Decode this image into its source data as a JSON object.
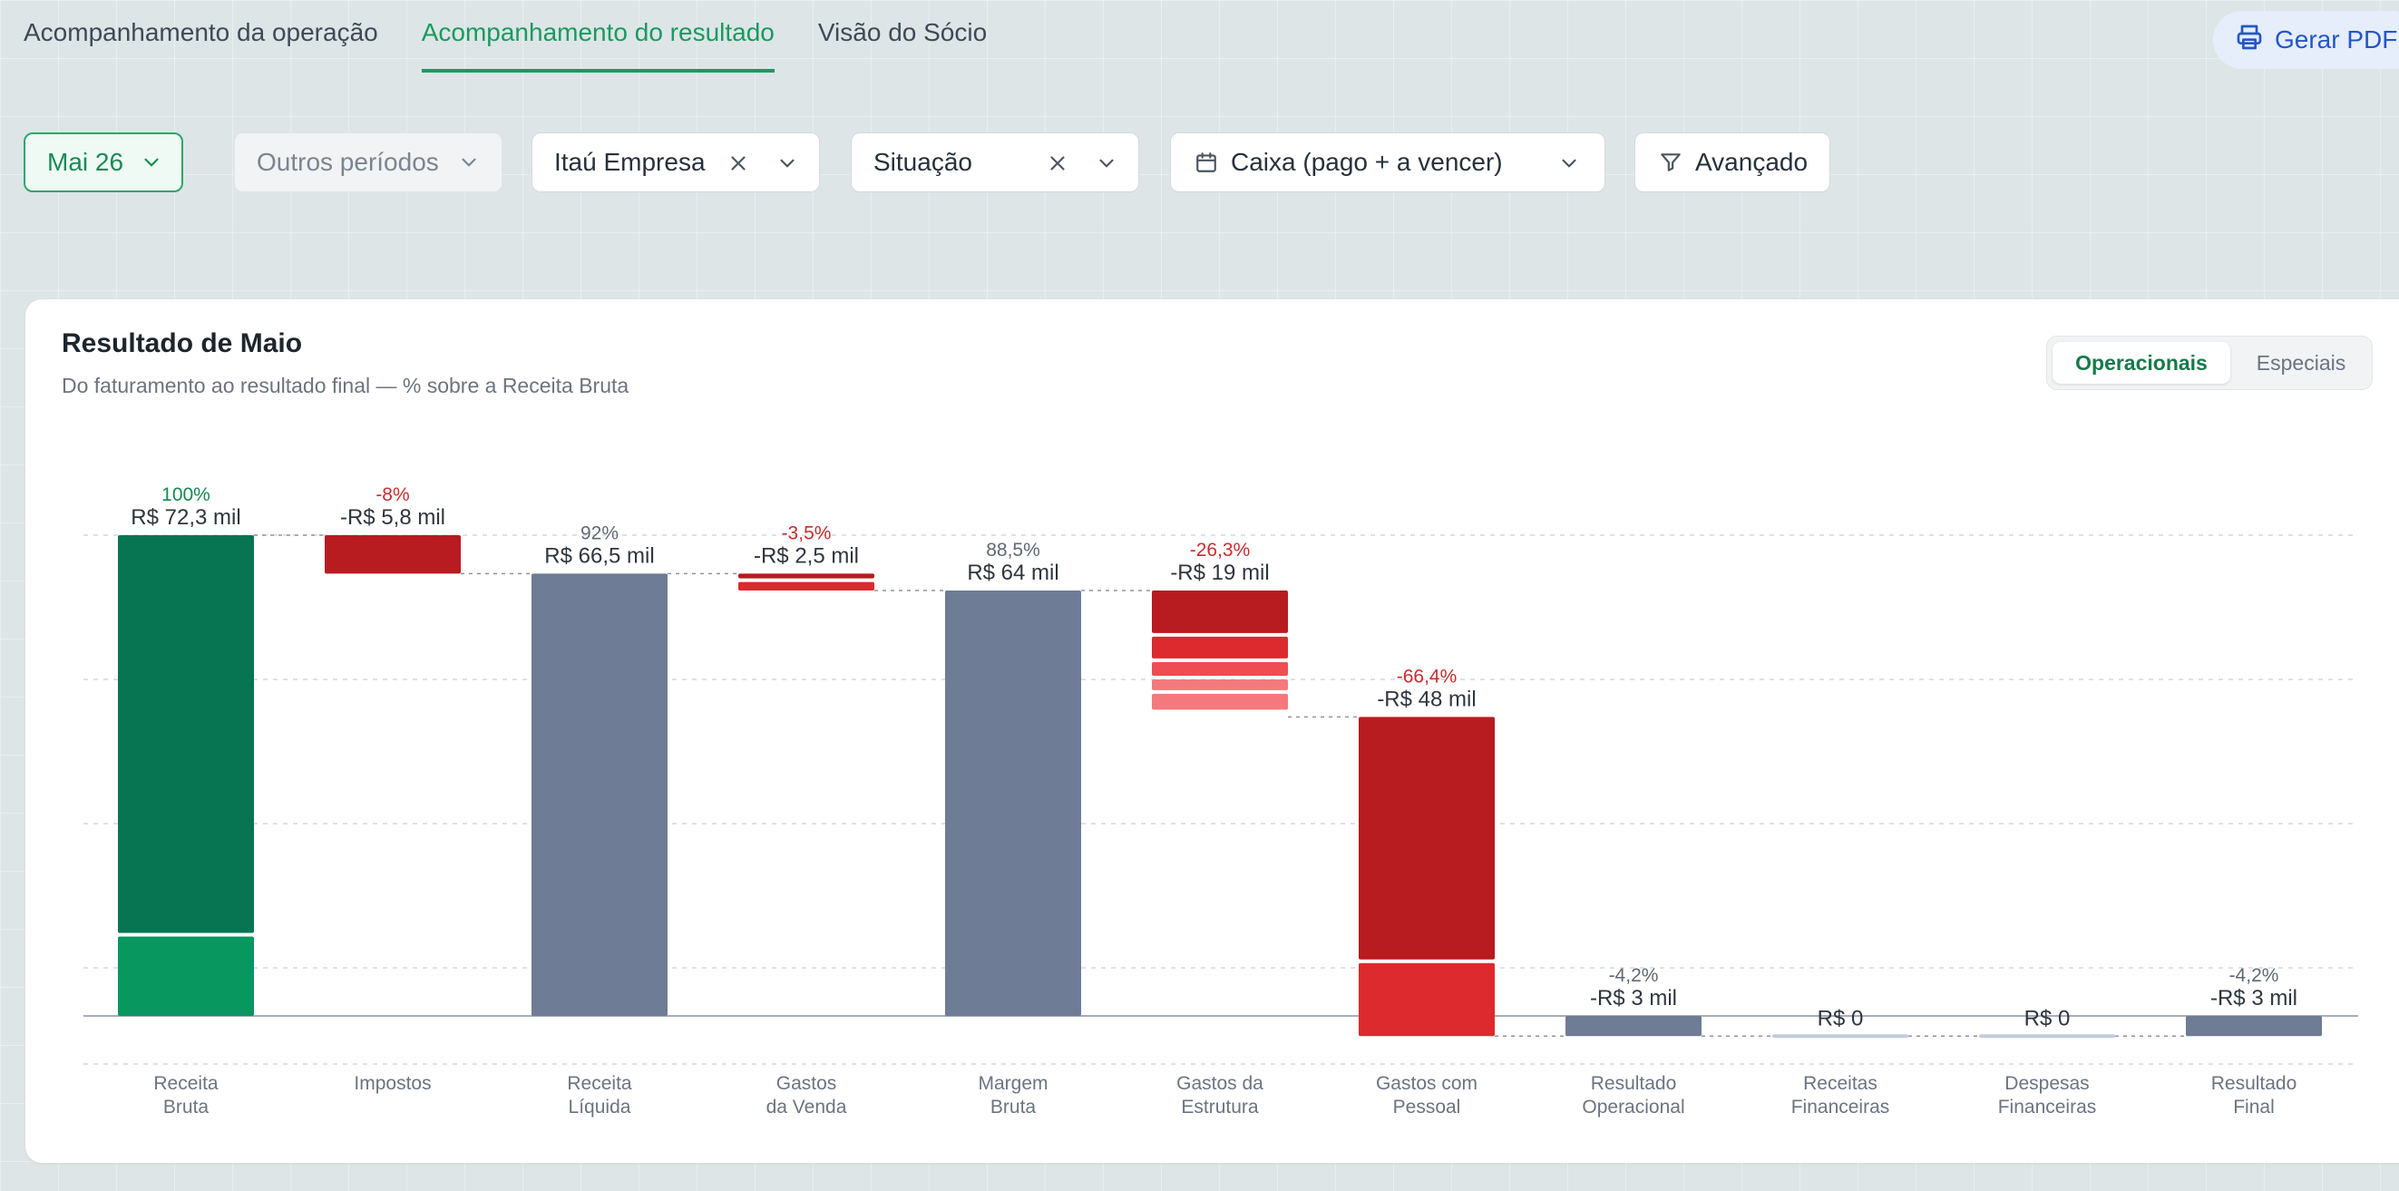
{
  "tabs": [
    {
      "label": "Acompanhamento da operação",
      "active": false
    },
    {
      "label": "Acompanhamento do resultado",
      "active": true
    },
    {
      "label": "Visão do Sócio",
      "active": false
    }
  ],
  "header": {
    "pdf_label": "Gerar PDF"
  },
  "filters": {
    "month": "Mai 26",
    "other_periods": "Outros períodos",
    "account": "Itaú Empresa",
    "status": "Situação",
    "basis": "Caixa (pago + a vencer)",
    "advanced": "Avançado"
  },
  "card": {
    "title": "Resultado de Maio",
    "subtitle": "Do faturamento ao resultado final — % sobre a Receita Bruta",
    "toggle": [
      "Operacionais",
      "Especiais"
    ],
    "toggle_active": "Operacionais"
  },
  "colors": {
    "accent": "#1a9a5e",
    "revenue_dark": "#077552",
    "revenue_light": "#07975f",
    "subtotal": "#6e7c95",
    "loss_dark": "#b81b20",
    "loss_mid": "#dc2a2e",
    "loss_light": "#ef4d51",
    "loss_lighter": "#f4797c",
    "zero_bar": "#c4ccdd",
    "positive_text": "#15894f",
    "negative_text": "#c72e2f",
    "neutral_text": "#5f6975"
  },
  "chart_data": {
    "type": "waterfall",
    "ylim": [
      -20,
      100
    ],
    "grid": true,
    "legend": "none",
    "steps": [
      {
        "label": [
          "Receita",
          "Bruta"
        ],
        "pct_label": "100%",
        "value_label": "R$ 72,3 mil",
        "kind": "total",
        "start": 0,
        "end": 100,
        "segments": [
          83.5,
          16.5
        ],
        "pct_color": "positive"
      },
      {
        "label": [
          "Impostos"
        ],
        "pct_label": "-8%",
        "value_label": "-R$ 5,8 mil",
        "kind": "delta",
        "start": 100,
        "end": 92,
        "segments": [
          8
        ],
        "pct_color": "negative"
      },
      {
        "label": [
          "Receita",
          "Líquida"
        ],
        "pct_label": "92%",
        "value_label": "R$ 66,5 mil",
        "kind": "subtotal",
        "start": 0,
        "end": 92,
        "segments": [
          92
        ],
        "pct_color": "neutral"
      },
      {
        "label": [
          "Gastos",
          "da Venda"
        ],
        "pct_label": "-3,5%",
        "value_label": "-R$ 2,5 mil",
        "kind": "delta",
        "start": 92,
        "end": 88.5,
        "segments": [
          1.75,
          1.75
        ],
        "pct_color": "negative"
      },
      {
        "label": [
          "Margem",
          "Bruta"
        ],
        "pct_label": "88,5%",
        "value_label": "R$ 64 mil",
        "kind": "subtotal",
        "start": 0,
        "end": 88.5,
        "segments": [
          88.5
        ],
        "pct_color": "neutral"
      },
      {
        "label": [
          "Gastos da",
          "Estrutura"
        ],
        "pct_label": "-26,3%",
        "value_label": "-R$ 19 mil",
        "kind": "delta",
        "start": 88.5,
        "end": 62.2,
        "segments": [
          9.6,
          5.3,
          3.6,
          3.0,
          3.3
        ],
        "pct_color": "negative"
      },
      {
        "label": [
          "Gastos com",
          "Pessoal"
        ],
        "pct_label": "-66,4%",
        "value_label": "-R$ 48 mil",
        "kind": "delta",
        "start": 62.2,
        "end": -4.2,
        "segments": [
          51.2,
          15.2
        ],
        "pct_color": "negative"
      },
      {
        "label": [
          "Resultado",
          "Operacional"
        ],
        "pct_label": "-4,2%",
        "value_label": "-R$ 3 mil",
        "kind": "subtotal",
        "start": 0,
        "end": -4.2,
        "segments": [
          4.2
        ],
        "pct_color": "neutral"
      },
      {
        "label": [
          "Receitas",
          "Financeiras"
        ],
        "pct_label": "",
        "value_label": "R$ 0",
        "kind": "zero",
        "start": -4.2,
        "end": -4.2,
        "segments": [],
        "pct_color": "neutral"
      },
      {
        "label": [
          "Despesas",
          "Financeiras"
        ],
        "pct_label": "",
        "value_label": "R$ 0",
        "kind": "zero",
        "start": -4.2,
        "end": -4.2,
        "segments": [],
        "pct_color": "neutral"
      },
      {
        "label": [
          "Resultado",
          "Final"
        ],
        "pct_label": "-4,2%",
        "value_label": "-R$ 3 mil",
        "kind": "subtotal",
        "start": 0,
        "end": -4.2,
        "segments": [
          4.2
        ],
        "pct_color": "neutral"
      }
    ]
  }
}
